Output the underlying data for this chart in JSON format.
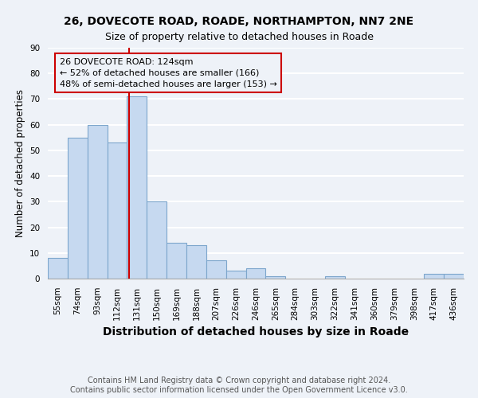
{
  "title1": "26, DOVECOTE ROAD, ROADE, NORTHAMPTON, NN7 2NE",
  "title2": "Size of property relative to detached houses in Roade",
  "xlabel": "Distribution of detached houses by size in Roade",
  "ylabel": "Number of detached properties",
  "footnote1": "Contains HM Land Registry data © Crown copyright and database right 2024.",
  "footnote2": "Contains public sector information licensed under the Open Government Licence v3.0.",
  "bar_labels": [
    "55sqm",
    "74sqm",
    "93sqm",
    "112sqm",
    "131sqm",
    "150sqm",
    "169sqm",
    "188sqm",
    "207sqm",
    "226sqm",
    "246sqm",
    "265sqm",
    "284sqm",
    "303sqm",
    "322sqm",
    "341sqm",
    "360sqm",
    "379sqm",
    "398sqm",
    "417sqm",
    "436sqm"
  ],
  "bar_values": [
    8,
    55,
    60,
    53,
    71,
    30,
    14,
    13,
    7,
    3,
    4,
    1,
    0,
    0,
    1,
    0,
    0,
    0,
    0,
    2,
    2
  ],
  "bar_color": "#c6d9f0",
  "bar_edgecolor": "#7da6cc",
  "annotation_line1": "26 DOVECOTE ROAD: 124sqm",
  "annotation_line2": "← 52% of detached houses are smaller (166)",
  "annotation_line3": "48% of semi-detached houses are larger (153) →",
  "vline_x": 3.6,
  "vline_color": "#cc0000",
  "box_color": "#cc0000",
  "ylim": [
    0,
    90
  ],
  "yticks": [
    0,
    10,
    20,
    30,
    40,
    50,
    60,
    70,
    80,
    90
  ],
  "background_color": "#eef2f8",
  "grid_color": "#ffffff",
  "title1_fontsize": 10,
  "title2_fontsize": 9,
  "xlabel_fontsize": 10,
  "ylabel_fontsize": 8.5,
  "tick_fontsize": 7.5,
  "footnote_fontsize": 7,
  "annot_fontsize": 8
}
